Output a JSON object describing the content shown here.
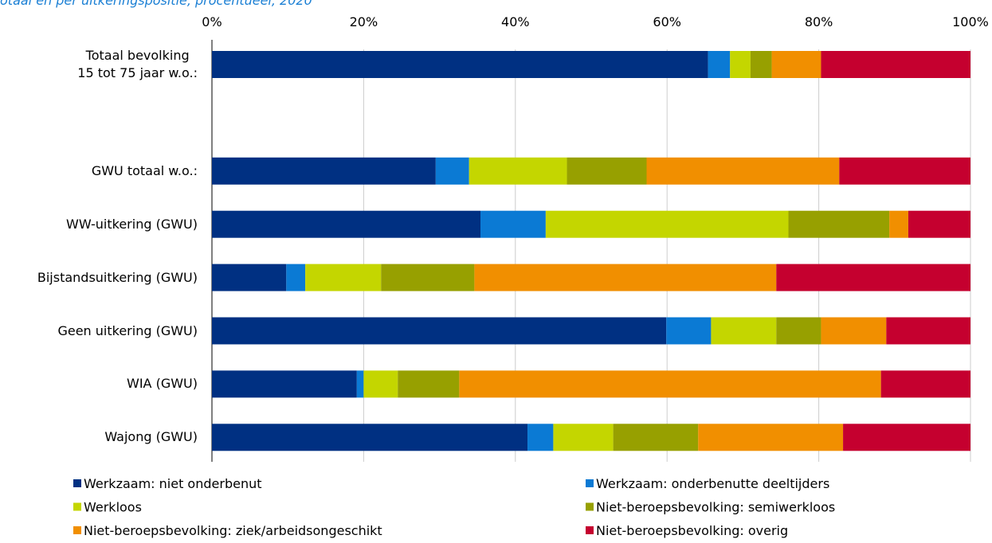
{
  "chart_data": {
    "type": "stacked_barh",
    "title": "otaal en per uitkeringspositie, procentueel, 2020",
    "categories": [
      "Totaal bevolking\n15 tot 75 jaar w.o.:",
      null,
      "GWU totaal w.o.:",
      "WW-uitkering (GWU)",
      "Bijstandsuitkering (GWU)",
      "Geen uitkering (GWU)",
      "WIA (GWU)",
      "Wajong (GWU)"
    ],
    "series": [
      {
        "name": "Werkzaam: niet onderbenut",
        "color": "#003082",
        "values": [
          65.4,
          null,
          29.5,
          35.4,
          9.8,
          59.9,
          19.1,
          41.6
        ]
      },
      {
        "name": "Werkzaam: onderbenutte deeltijders",
        "color": "#0b7ad4",
        "values": [
          2.9,
          null,
          4.4,
          8.6,
          2.5,
          5.9,
          0.9,
          3.4
        ]
      },
      {
        "name": "Werkloos",
        "color": "#c4d600",
        "values": [
          2.7,
          null,
          12.9,
          32.0,
          10.0,
          8.6,
          4.5,
          7.9
        ]
      },
      {
        "name": "Niet-beroepsbevolking: semiwerkloos",
        "color": "#97a000",
        "values": [
          2.8,
          null,
          10.5,
          13.3,
          12.3,
          5.9,
          8.1,
          11.2
        ]
      },
      {
        "name": "Niet-beroepsbevolking: ziek/arbeidsongeschikt",
        "color": "#f18f00",
        "values": [
          6.5,
          null,
          25.4,
          2.5,
          39.8,
          8.6,
          55.6,
          19.1
        ]
      },
      {
        "name": "Niet-beroepsbevolking: overig",
        "color": "#c5002f",
        "values": [
          19.7,
          null,
          17.3,
          8.2,
          25.6,
          11.1,
          11.8,
          16.8
        ]
      }
    ],
    "xlim": [
      0,
      100
    ],
    "xticks": [
      {
        "value": 0,
        "label": "0%"
      },
      {
        "value": 20,
        "label": "20%"
      },
      {
        "value": 40,
        "label": "40%"
      },
      {
        "value": 60,
        "label": "60%"
      },
      {
        "value": 80,
        "label": "80%"
      },
      {
        "value": 100,
        "label": "100%"
      }
    ],
    "grid": true
  }
}
